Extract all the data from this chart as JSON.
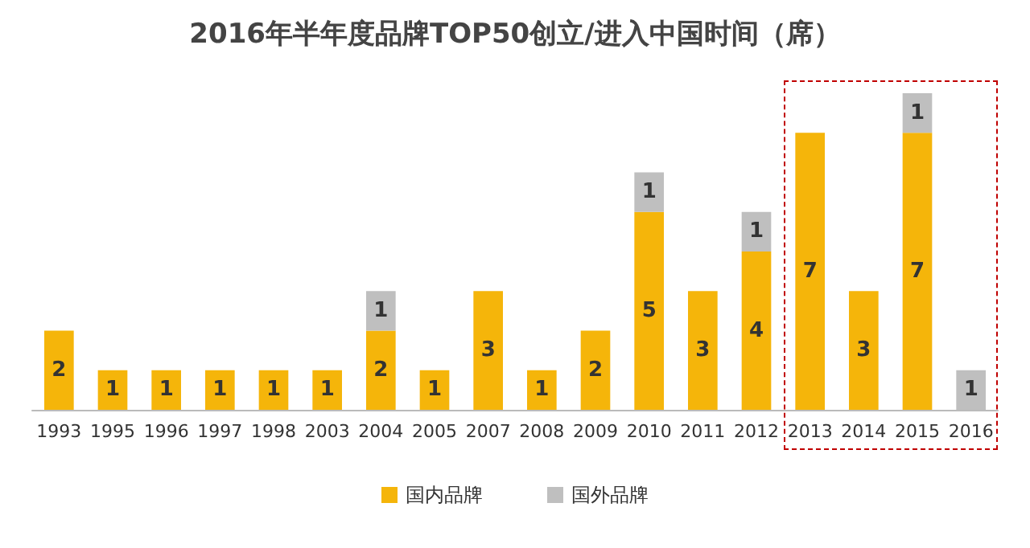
{
  "chart_data": {
    "type": "bar",
    "title": "2016年半年度品牌TOP50创立/进入中国时间（席）",
    "categories": [
      "1993",
      "1995",
      "1996",
      "1997",
      "1998",
      "2003",
      "2004",
      "2005",
      "2007",
      "2008",
      "2009",
      "2010",
      "2011",
      "2012",
      "2013",
      "2014",
      "2015",
      "2016"
    ],
    "series": [
      {
        "name": "国内品牌",
        "color": "#f5b50a",
        "values": [
          2,
          1,
          1,
          1,
          1,
          1,
          2,
          1,
          3,
          1,
          2,
          5,
          3,
          4,
          7,
          3,
          7,
          null
        ]
      },
      {
        "name": "国外品牌",
        "color": "#bfbfbf",
        "values": [
          null,
          null,
          null,
          null,
          null,
          null,
          1,
          null,
          null,
          null,
          null,
          1,
          null,
          1,
          null,
          null,
          1,
          1
        ]
      }
    ],
    "stacked": true,
    "data_labels": true,
    "legend": "bottom",
    "tick_labels": "x"
  }
}
